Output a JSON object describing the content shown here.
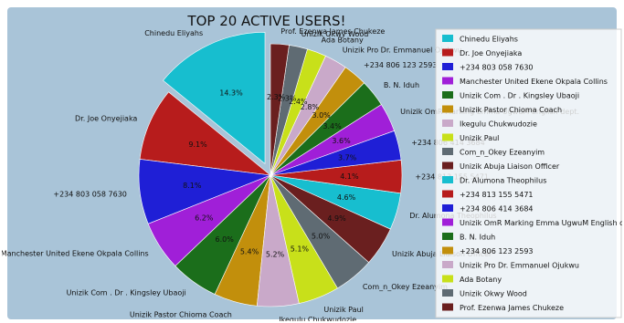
{
  "chart_data": {
    "type": "pie",
    "title": "TOP 20 ACTIVE USERS!",
    "categories": [
      "Chinedu Eliyahs",
      "Dr. Joe Onyejiaka",
      "+234 803 058 7630",
      "Manchester United Ekene Okpala Collins",
      "Unizik Com . Dr . Kingsley Ubaoji",
      "Unizik Pastor Chioma Coach",
      "Ikegulu Chukwudozie",
      "Unizik Paul",
      "Com_n_Okey Ezeanyim",
      "Unizik Abuja Liaison Officer",
      "Dr. Alumona Theophilus",
      "+234 813 155 5471",
      "+234 806 414 3684",
      "Unizik OmR Marking Emma UgwuM English dept.",
      "B. N. Iduh",
      "+234 806 123 2593",
      "Unizik Pro Dr. Emmanuel Ojukwu",
      "Ada Botany",
      "Unizik Okwy Wood",
      "Prof. Ezenwa James Chukeze"
    ],
    "values": [
      14.3,
      9.1,
      8.1,
      6.2,
      6.0,
      5.4,
      5.2,
      5.1,
      5.0,
      4.9,
      4.6,
      4.1,
      3.7,
      3.6,
      3.4,
      3.0,
      2.8,
      2.4,
      2.3,
      2.3
    ],
    "labels": [
      "14.3%",
      "9.1%",
      "8.1%",
      "6.2%",
      "6.0%",
      "5.4%",
      "5.2%",
      "5.1%",
      "5.0%",
      "4.9%",
      "4.6%",
      "4.1%",
      "3.7%",
      "3.6%",
      "3.4%",
      "3.0%",
      "2.8%",
      "2.4%",
      "2.3%",
      "2.3%"
    ],
    "colors": [
      "#17becf",
      "#b71c1c",
      "#1f1fd6",
      "#a01fd8",
      "#1b6e1b",
      "#c28f0c",
      "#c9a9c9",
      "#c8e01a",
      "#5f6b73",
      "#6a1f1f",
      "#17becf",
      "#b71c1c",
      "#1f1fd6",
      "#a01fd8",
      "#1b6e1b",
      "#c28f0c",
      "#c9a9c9",
      "#c8e01a",
      "#5f6b73",
      "#6a1f1f"
    ],
    "exploded_index": 0,
    "legend_position": "right"
  }
}
